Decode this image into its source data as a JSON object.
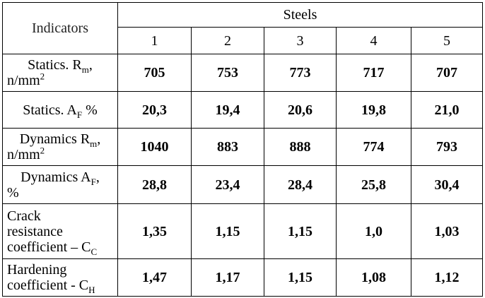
{
  "header": {
    "indicators": "Indicators",
    "steels": "Steels",
    "columns": [
      "1",
      "2",
      "3",
      "4",
      "5"
    ]
  },
  "rows": [
    {
      "label_l1": "Statics. R",
      "label_l1_sub": "m",
      "label_l1_tail": ",",
      "label_l2": "n/mm",
      "label_l2_sup": "2",
      "values": [
        "705",
        "753",
        "773",
        "717",
        "707"
      ]
    },
    {
      "label_l1": "Statics. A",
      "label_l1_sub": "F",
      "label_l1_tail": " %",
      "values": [
        "20,3",
        "19,4",
        "20,6",
        "19,8",
        "21,0"
      ]
    },
    {
      "label_l1": "Dynamics R",
      "label_l1_sub": "m",
      "label_l1_tail": ",",
      "label_l2": "n/mm",
      "label_l2_sup": "2",
      "values": [
        "1040",
        "883",
        "888",
        "774",
        "793"
      ]
    },
    {
      "label_l1": "Dynamics A",
      "label_l1_sub": "F",
      "label_l1_tail": ",",
      "label_l2": "%",
      "values": [
        "28,8",
        "23,4",
        "28,4",
        "25,8",
        "30,4"
      ]
    },
    {
      "label_l1": "Crack",
      "label_l2": "resistance",
      "label_l3": "coefficient – C",
      "label_l3_sub": "C",
      "values": [
        "1,35",
        "1,15",
        "1,15",
        "1,0",
        "1,03"
      ]
    },
    {
      "label_l1": "Hardening",
      "label_l2": "coefficient - C",
      "label_l2_sub": "H",
      "values": [
        "1,47",
        "1,17",
        "1,15",
        "1,08",
        "1,12"
      ]
    }
  ]
}
